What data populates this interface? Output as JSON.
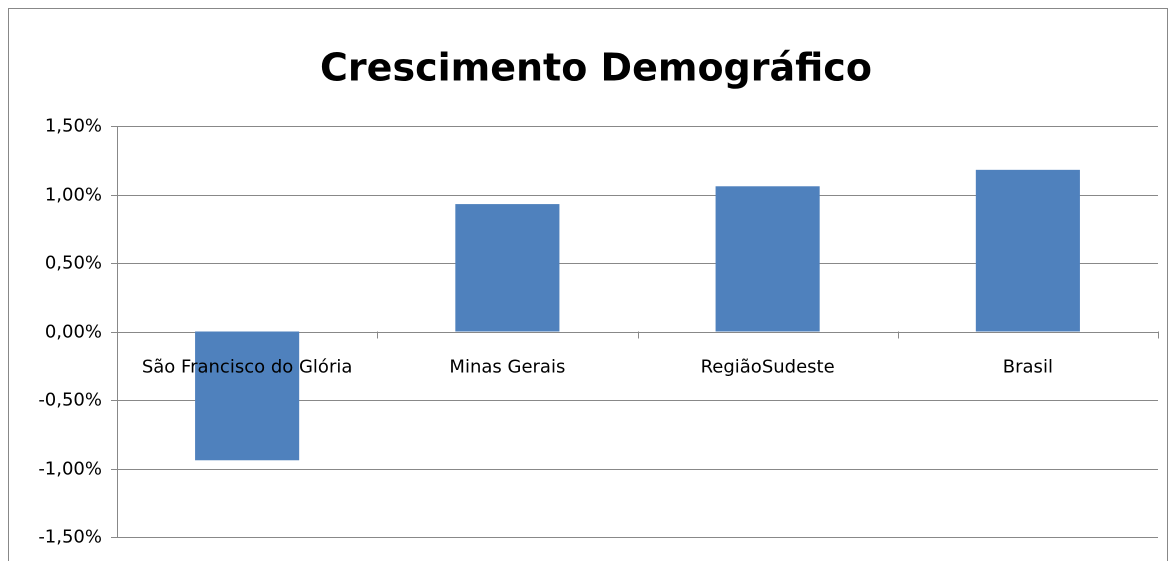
{
  "chart_data": {
    "type": "bar",
    "title": "Crescimento Demográfico",
    "categories": [
      "São Francisco do Glória",
      "Minas Gerais",
      "RegiãoSudeste",
      "Brasil"
    ],
    "values": [
      -0.94,
      0.93,
      1.06,
      1.18
    ],
    "color": "#4f81bd",
    "ylim": [
      -1.5,
      1.5
    ],
    "yticks": [
      {
        "value": -1.5,
        "label": "-1,50%"
      },
      {
        "value": -1.0,
        "label": "-1,00%"
      },
      {
        "value": -0.5,
        "label": "-0,50%"
      },
      {
        "value": 0,
        "label": "0,00%"
      },
      {
        "value": 0.5,
        "label": "0,50%"
      },
      {
        "value": 1.0,
        "label": "1,00%"
      },
      {
        "value": 1.5,
        "label": "1,50%"
      }
    ],
    "grid": true
  }
}
